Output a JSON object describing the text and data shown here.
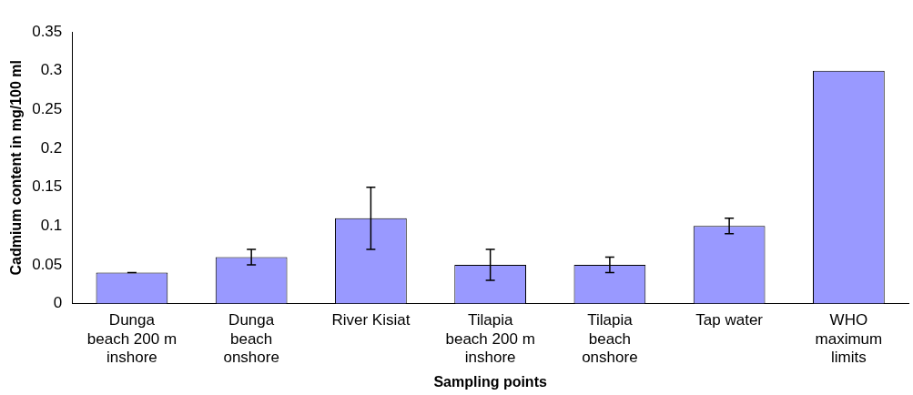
{
  "chart_data": {
    "type": "bar",
    "xlabel": "Sampling points",
    "ylabel": "Cadmium content in mg/100 ml",
    "categories": [
      "Dunga beach 200 m inshore",
      "Dunga beach onshore",
      "River Kisiat",
      "Tilapia beach 200 m inshore",
      "Tilapia beach onshore",
      "Tap water",
      "WHO maximum limits"
    ],
    "values": [
      0.04,
      0.06,
      0.11,
      0.05,
      0.05,
      0.1,
      0.3
    ],
    "errors": [
      0,
      0.01,
      0.04,
      0.02,
      0.01,
      0.01,
      null
    ],
    "color": "#9999ff",
    "ylim": [
      0,
      0.35
    ],
    "yticks": [
      0,
      0.05,
      0.1,
      0.15,
      0.2,
      0.25,
      0.3,
      0.35
    ],
    "grid": false,
    "legend": false
  }
}
